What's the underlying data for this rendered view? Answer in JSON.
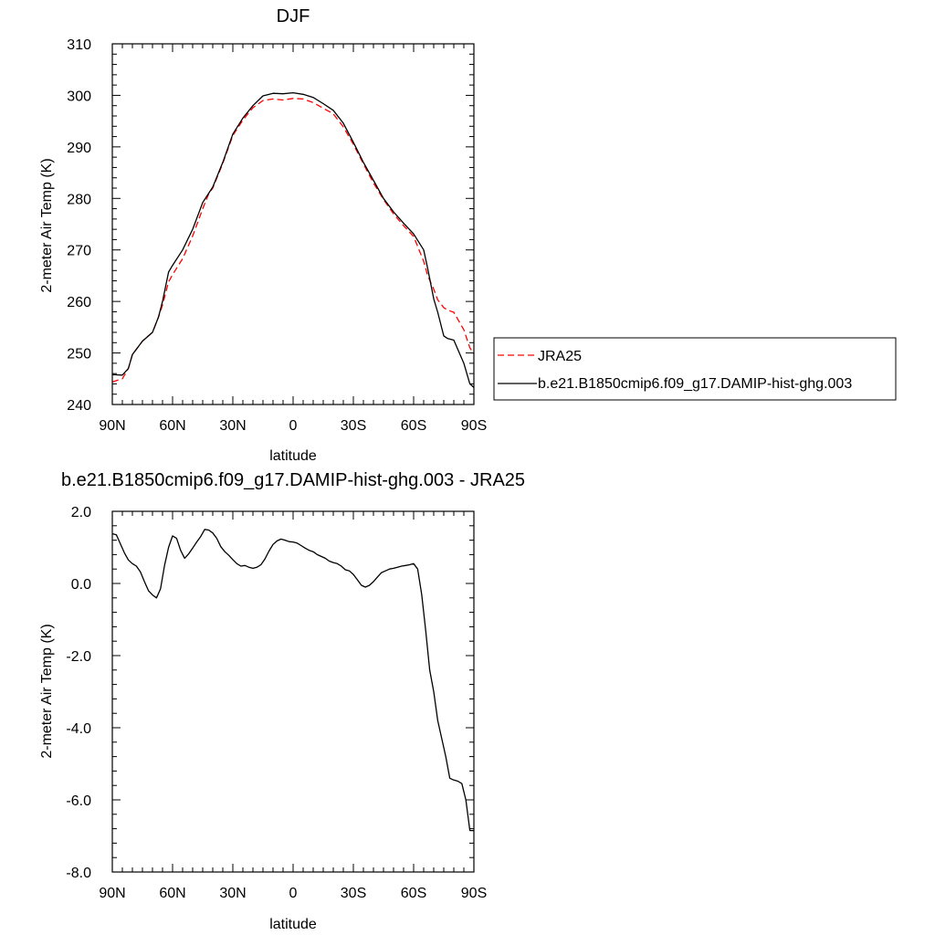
{
  "chart_data": [
    {
      "type": "line",
      "title": "DJF",
      "xlabel": "latitude",
      "ylabel": "2-meter Air Temp (K)",
      "xlim": [
        90,
        -90
      ],
      "ylim": [
        240,
        310
      ],
      "x_ticks": [
        {
          "value": 90,
          "label": "90N"
        },
        {
          "value": 60,
          "label": "60N"
        },
        {
          "value": 30,
          "label": "30N"
        },
        {
          "value": 0,
          "label": "0"
        },
        {
          "value": -30,
          "label": "30S"
        },
        {
          "value": -60,
          "label": "60S"
        },
        {
          "value": -90,
          "label": "90S"
        }
      ],
      "y_ticks": [
        240,
        250,
        260,
        270,
        280,
        290,
        300,
        310
      ],
      "y_tick_labels": [
        "240",
        "250",
        "260",
        "270",
        "280",
        "290",
        "300",
        "310"
      ],
      "legend": {
        "placement": "right, outside plot"
      },
      "series": [
        {
          "name": "JRA25",
          "color": "#ff0000",
          "dash": true,
          "x": [
            90,
            85,
            82,
            80,
            75,
            70,
            67,
            65,
            62,
            60,
            55,
            50,
            45,
            42,
            40,
            35,
            30,
            25,
            20,
            15,
            10,
            5,
            0,
            -5,
            -10,
            -15,
            -20,
            -25,
            -30,
            -35,
            -40,
            -45,
            -50,
            -55,
            -60,
            -65,
            -67,
            -70,
            -72,
            -75,
            -77,
            -80,
            -85,
            -88,
            -90
          ],
          "y": [
            244.4,
            245.0,
            247.0,
            249.7,
            252.3,
            254.0,
            257.0,
            259.3,
            263.8,
            265.2,
            268.3,
            272.7,
            278.0,
            280.9,
            282.0,
            286.8,
            292.2,
            295.2,
            297.6,
            299.0,
            299.3,
            299.1,
            299.4,
            299.3,
            298.6,
            297.5,
            296.4,
            293.9,
            290.5,
            286.7,
            283.0,
            279.8,
            277.0,
            274.7,
            272.6,
            267.8,
            265.0,
            262.4,
            260.3,
            258.8,
            258.3,
            257.9,
            254.5,
            251.0,
            249.8
          ]
        },
        {
          "name": "b.e21.B1850cmip6.f09_g17.DAMIP-hist-ghg.003",
          "color": "#000000",
          "dash": false,
          "x": [
            90,
            85,
            82,
            80,
            75,
            70,
            67,
            65,
            62,
            60,
            55,
            50,
            45,
            42,
            40,
            35,
            30,
            25,
            20,
            15,
            10,
            5,
            0,
            -5,
            -10,
            -15,
            -20,
            -25,
            -30,
            -35,
            -40,
            -45,
            -50,
            -55,
            -60,
            -65,
            -67,
            -70,
            -72,
            -75,
            -77,
            -80,
            -85,
            -88,
            -90
          ],
          "y": [
            245.8,
            245.7,
            247.0,
            249.7,
            252.3,
            254.0,
            257.0,
            260.0,
            265.7,
            267.0,
            270.0,
            274.0,
            279.2,
            281.0,
            282.2,
            287.0,
            292.5,
            295.6,
            298.0,
            299.9,
            300.4,
            300.3,
            300.5,
            300.2,
            299.6,
            298.4,
            297.1,
            294.6,
            290.9,
            287.0,
            283.5,
            280.0,
            277.4,
            275.2,
            273.1,
            270.0,
            266.4,
            260.5,
            257.9,
            253.3,
            252.8,
            252.5,
            248.0,
            244.0,
            243.3
          ]
        }
      ]
    },
    {
      "type": "line",
      "title": "b.e21.B1850cmip6.f09_g17.DAMIP-hist-ghg.003 - JRA25",
      "xlabel": "latitude",
      "ylabel": "2-meter Air Temp (K)",
      "xlim": [
        90,
        -90
      ],
      "ylim": [
        -8.0,
        2.0
      ],
      "x_ticks": [
        {
          "value": 90,
          "label": "90N"
        },
        {
          "value": 60,
          "label": "60N"
        },
        {
          "value": 30,
          "label": "30N"
        },
        {
          "value": 0,
          "label": "0"
        },
        {
          "value": -30,
          "label": "30S"
        },
        {
          "value": -60,
          "label": "60S"
        },
        {
          "value": -90,
          "label": "90S"
        }
      ],
      "y_ticks": [
        -8,
        -6,
        -4,
        -2,
        0,
        2
      ],
      "y_tick_labels": [
        "-8.0",
        "-6.0",
        "-4.0",
        "-2.0",
        "0.0",
        "2.0"
      ],
      "series": [
        {
          "color": "#000000",
          "x": [
            90,
            88,
            86,
            84,
            82,
            80,
            78,
            76,
            74,
            72,
            70,
            68,
            66,
            64,
            62,
            60,
            58,
            56,
            54,
            52,
            50,
            48,
            46,
            44,
            42,
            40,
            38,
            36,
            34,
            32,
            30,
            28,
            26,
            24,
            22,
            20,
            18,
            16,
            14,
            12,
            10,
            8,
            6,
            4,
            2,
            0,
            -2,
            -4,
            -6,
            -8,
            -10,
            -12,
            -14,
            -16,
            -18,
            -20,
            -22,
            -24,
            -26,
            -28,
            -30,
            -32,
            -34,
            -36,
            -38,
            -40,
            -42,
            -44,
            -46,
            -48,
            -50,
            -52,
            -54,
            -56,
            -58,
            -60,
            -62,
            -64,
            -66,
            -68,
            -70,
            -72,
            -74,
            -76,
            -78,
            -80,
            -82,
            -84,
            -86,
            -88,
            -90
          ],
          "y": [
            1.38,
            1.35,
            1.1,
            0.85,
            0.65,
            0.55,
            0.48,
            0.32,
            0.05,
            -0.2,
            -0.32,
            -0.4,
            -0.15,
            0.5,
            1.0,
            1.32,
            1.25,
            0.92,
            0.7,
            0.82,
            0.98,
            1.15,
            1.3,
            1.5,
            1.48,
            1.4,
            1.25,
            1.02,
            0.88,
            0.78,
            0.66,
            0.55,
            0.48,
            0.5,
            0.45,
            0.42,
            0.45,
            0.52,
            0.68,
            0.9,
            1.08,
            1.18,
            1.23,
            1.2,
            1.16,
            1.15,
            1.12,
            1.05,
            0.98,
            0.92,
            0.88,
            0.8,
            0.75,
            0.7,
            0.62,
            0.58,
            0.55,
            0.48,
            0.38,
            0.35,
            0.25,
            0.1,
            -0.05,
            -0.1,
            -0.05,
            0.05,
            0.18,
            0.3,
            0.35,
            0.4,
            0.42,
            0.45,
            0.48,
            0.5,
            0.52,
            0.55,
            0.4,
            -0.3,
            -1.3,
            -2.4,
            -3.0,
            -3.8,
            -4.3,
            -4.8,
            -5.4,
            -5.45,
            -5.48,
            -5.55,
            -6.0,
            -6.85,
            -6.85
          ]
        }
      ]
    }
  ]
}
